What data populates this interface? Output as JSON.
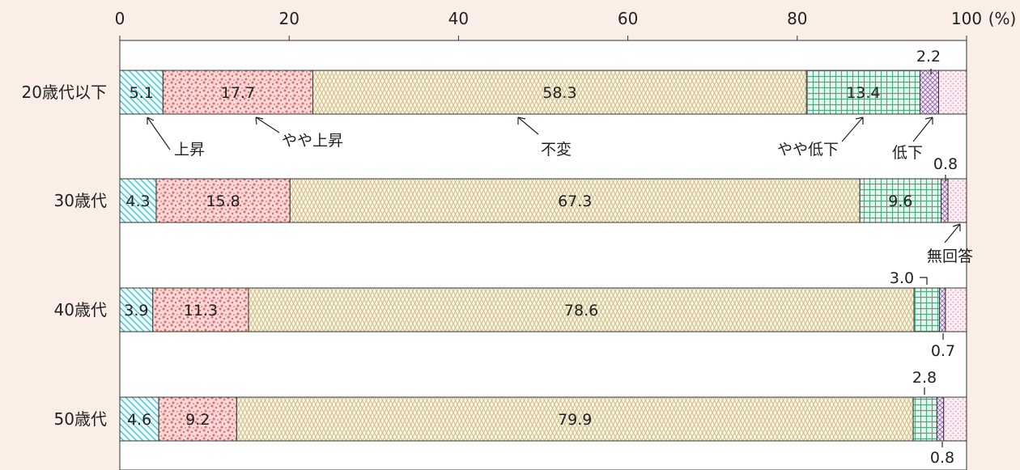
{
  "chart_data": {
    "type": "bar",
    "orientation": "horizontal",
    "stacked": true,
    "xlim": [
      0,
      100
    ],
    "x_ticks": [
      "0",
      "20",
      "40",
      "60",
      "80",
      "100"
    ],
    "x_unit": "(%)",
    "categories": [
      "20歳代以下",
      "30歳代",
      "40歳代",
      "50歳代"
    ],
    "series": [
      {
        "name": "上昇",
        "values": [
          5.1,
          4.3,
          3.9,
          4.6
        ],
        "labels": [
          "5.1",
          "4.3",
          "3.9",
          "4.6"
        ]
      },
      {
        "name": "やや上昇",
        "values": [
          17.7,
          15.8,
          11.3,
          9.2
        ],
        "labels": [
          "17.7",
          "15.8",
          "11.3",
          "9.2"
        ]
      },
      {
        "name": "不変",
        "values": [
          58.3,
          67.3,
          78.6,
          79.9
        ],
        "labels": [
          "58.3",
          "67.3",
          "78.6",
          "79.9"
        ]
      },
      {
        "name": "やや低下",
        "values": [
          13.4,
          9.6,
          3.0,
          2.8
        ],
        "labels": [
          "13.4",
          "9.6",
          "3.0",
          "2.8"
        ]
      },
      {
        "name": "低下",
        "values": [
          2.2,
          0.8,
          0.7,
          0.8
        ],
        "labels": [
          "2.2",
          "0.8",
          "0.7",
          "0.8"
        ]
      },
      {
        "name": "無回答",
        "values": [
          3.3,
          2.2,
          2.5,
          2.7
        ],
        "labels": [
          "",
          "",
          "",
          ""
        ]
      }
    ],
    "grid": false,
    "legend": "annotations"
  },
  "colors": {
    "background": "#fbeee6",
    "plot": "#ffffff",
    "上昇": "#4bb7c2",
    "やや上昇": "#de8a8a",
    "不変": "#cfc08e",
    "やや低下": "#4cab86",
    "低下": "#9a6fae",
    "無回答": "#d79ab6"
  }
}
